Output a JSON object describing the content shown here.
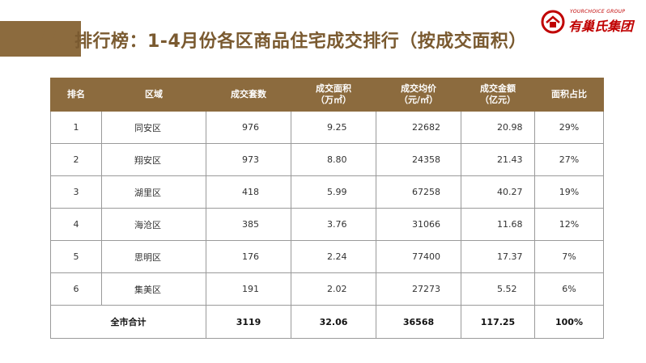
{
  "header": {
    "title": "排行榜：1-4月份各区商品住宅成交排行（按成交面积）"
  },
  "logo": {
    "en": "YOURCHOICE GROUP",
    "cn": "有巢氏集团"
  },
  "colors": {
    "accent": "#8c6b3e",
    "title": "#7a5a30",
    "logo": "#c00000"
  },
  "table": {
    "headers": [
      "排名",
      "区域",
      "成交套数",
      "成交面积\n（万㎡）",
      "成交均价\n（元/㎡）",
      "成交金额\n（亿元）",
      "面积占比"
    ],
    "rows": [
      [
        "1",
        "同安区",
        "976",
        "9.25",
        "22682",
        "20.98",
        "29%"
      ],
      [
        "2",
        "翔安区",
        "973",
        "8.80",
        "24358",
        "21.43",
        "27%"
      ],
      [
        "3",
        "湖里区",
        "418",
        "5.99",
        "67258",
        "40.27",
        "19%"
      ],
      [
        "4",
        "海沧区",
        "385",
        "3.76",
        "31066",
        "11.68",
        "12%"
      ],
      [
        "5",
        "思明区",
        "176",
        "2.24",
        "77400",
        "17.37",
        "7%"
      ],
      [
        "6",
        "集美区",
        "191",
        "2.02",
        "27273",
        "5.52",
        "6%"
      ]
    ],
    "total": {
      "label": "全市合计",
      "units": "3119",
      "area": "32.06",
      "price": "36568",
      "amount": "117.25",
      "share": "100%"
    }
  }
}
